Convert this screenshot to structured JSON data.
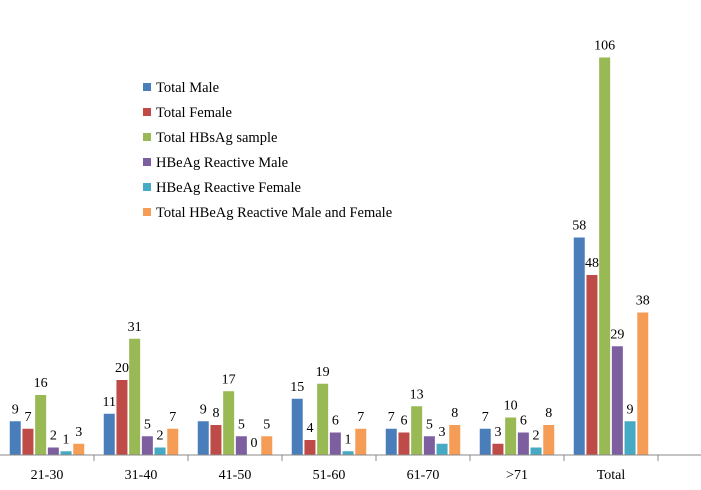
{
  "chart_data": {
    "type": "bar",
    "categories": [
      "21-30",
      "31-40",
      "41-50",
      "51-60",
      "61-70",
      ">71",
      "Total"
    ],
    "series": [
      {
        "name": "Total Male",
        "color": "#4a7ebb",
        "values": [
          9,
          11,
          9,
          15,
          7,
          7,
          58
        ]
      },
      {
        "name": "Total Female",
        "color": "#be4b48",
        "values": [
          7,
          20,
          8,
          4,
          6,
          3,
          48
        ]
      },
      {
        "name": "Total HBsAg sample",
        "color": "#98b954",
        "values": [
          16,
          31,
          17,
          19,
          13,
          10,
          106
        ]
      },
      {
        "name": "HBeAg Reactive Male",
        "color": "#7d5fa0",
        "values": [
          2,
          5,
          5,
          6,
          5,
          6,
          29
        ]
      },
      {
        "name": "HBeAg Reactive Female",
        "color": "#46aac5",
        "values": [
          1,
          2,
          0,
          1,
          3,
          2,
          9
        ]
      },
      {
        "name": "Total HBeAg Reactive Male and Female",
        "color": "#f59d56",
        "values": [
          3,
          7,
          5,
          7,
          8,
          8,
          38
        ]
      }
    ],
    "ylim": [
      0,
      110
    ],
    "grid": false,
    "legend_position": "top-left inside plot"
  }
}
